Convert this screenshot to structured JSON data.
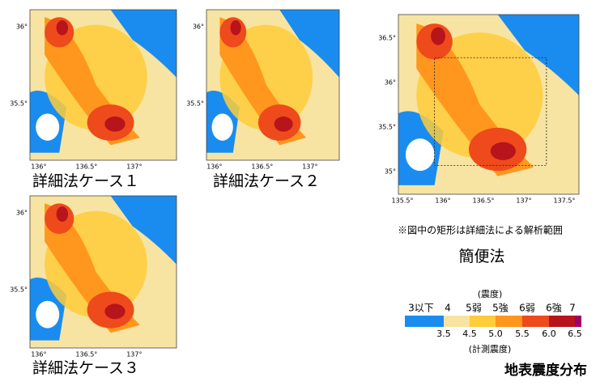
{
  "panels": [
    {
      "caption": "詳細法ケース１",
      "xticks": [
        "136°",
        "136.5°",
        "137°"
      ],
      "yticks": [
        "36°",
        "35.5°"
      ]
    },
    {
      "caption": "詳細法ケース２",
      "xticks": [
        "136°",
        "136.5°",
        "137°"
      ],
      "yticks": [
        "36°",
        "35.5°"
      ]
    },
    {
      "caption": "詳細法ケース３",
      "xticks": [
        "136°",
        "136.5°",
        "137°"
      ],
      "yticks": [
        "36°",
        "35.5°"
      ]
    },
    {
      "caption": "簡便法",
      "xticks": [
        "135.5°",
        "136°",
        "136.5°",
        "137°",
        "137.5°"
      ],
      "yticks": [
        "36.5°",
        "36°",
        "35.5°",
        "35°"
      ],
      "note": "※図中の矩形は詳細法による解析範囲"
    }
  ],
  "legend": {
    "intensity_title": "(震度)",
    "intensity_labels": [
      "3以下",
      "4",
      "5弱",
      "5強",
      "6弱",
      "6強",
      "7"
    ],
    "colors": [
      "#1a8cf0",
      "#f7e4a2",
      "#ffcc3a",
      "#ff961e",
      "#ee4a1c",
      "#b8141c",
      "#a0006a"
    ],
    "measured_values": [
      "3.5",
      "4.5",
      "5.0",
      "5.5",
      "6.0",
      "6.5"
    ],
    "measured_title": "(計測震度)"
  },
  "title": "地表震度分布"
}
